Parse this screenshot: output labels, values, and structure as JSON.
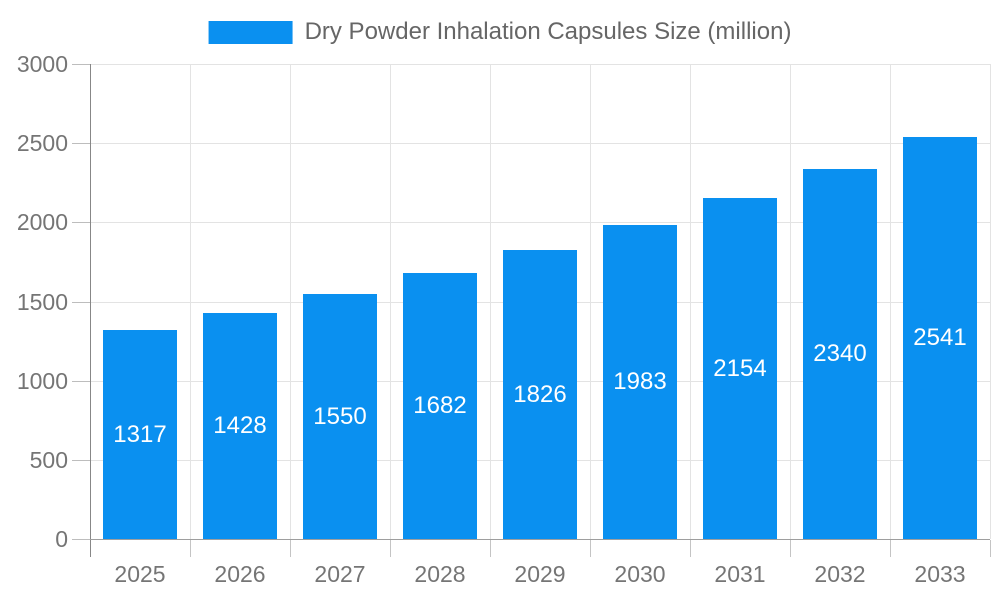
{
  "legend": {
    "label": "Dry Powder Inhalation Capsules Size (million)"
  },
  "chart_data": {
    "type": "bar",
    "title": "Dry Powder Inhalation Capsules Size (million)",
    "series_name": "Dry Powder Inhalation Capsules Size (million)",
    "categories": [
      "2025",
      "2026",
      "2027",
      "2028",
      "2029",
      "2030",
      "2031",
      "2032",
      "2033"
    ],
    "values": [
      1317,
      1428,
      1550,
      1682,
      1826,
      1983,
      2154,
      2340,
      2541
    ],
    "xlabel": "",
    "ylabel": "",
    "ylim": [
      0,
      3000
    ],
    "ytick_step": 500,
    "yticks": [
      0,
      500,
      1000,
      1500,
      2000,
      2500,
      3000
    ],
    "grid": true,
    "legend_position": "top-center",
    "bar_color": "#0a90f0",
    "bar_label_color": "#ffffff",
    "axis_label_color": "#757575",
    "legend_text_color": "#666666"
  }
}
